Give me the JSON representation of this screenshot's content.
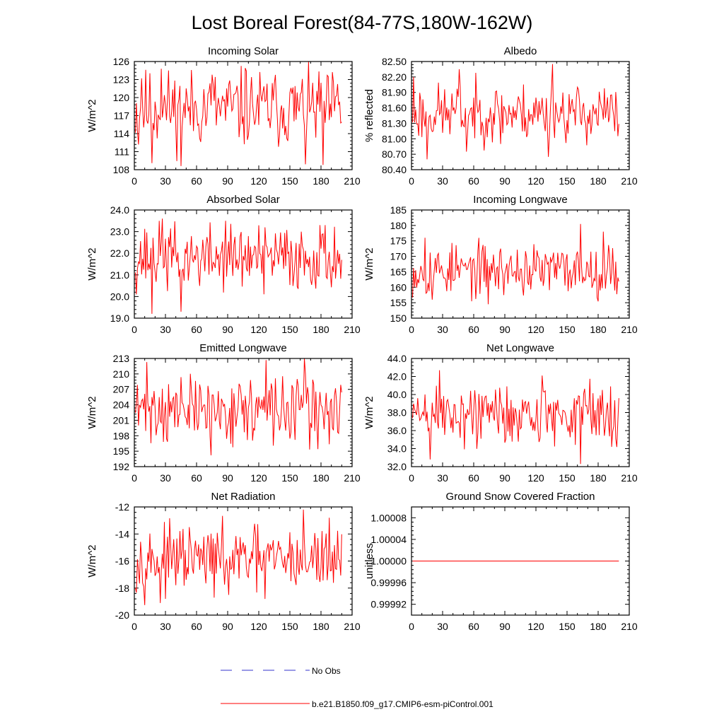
{
  "title": "Lost Boreal Forest(84-77S,180W-162W)",
  "colors": {
    "series": "#ff0000",
    "obs": "#3333cc",
    "axis": "#000000"
  },
  "legend": [
    {
      "label": "No Obs",
      "style": "dashed",
      "color": "#3333cc"
    },
    {
      "label": "b.e21.B1850.f09_g17.CMIP6-esm-piControl.001",
      "style": "solid",
      "color": "#ff0000"
    }
  ],
  "chart_data": [
    {
      "type": "line",
      "title": "Incoming Solar",
      "ylabel": "W/m^2",
      "xlim": [
        0,
        210
      ],
      "xticks": [
        "0",
        "30",
        "60",
        "90",
        "120",
        "150",
        "180",
        "210"
      ],
      "ylim": [
        108,
        126
      ],
      "yticks": [
        "108",
        "111",
        "114",
        "117",
        "120",
        "123",
        "126"
      ],
      "n": 200,
      "mean": 118.2,
      "amp": 3.2,
      "seed": 11,
      "extremes": [
        [
          3,
          112.2
        ],
        [
          6,
          123.2
        ],
        [
          16,
          109.1
        ],
        [
          25,
          124.8
        ],
        [
          44,
          108.6
        ],
        [
          74,
          123.8
        ],
        [
          106,
          124.9
        ],
        [
          164,
          108.9
        ],
        [
          181,
          108.8
        ],
        [
          186,
          123.5
        ]
      ]
    },
    {
      "type": "line",
      "title": "Albedo",
      "ylabel": "% reflected",
      "xlim": [
        0,
        210
      ],
      "xticks": [
        "0",
        "30",
        "60",
        "90",
        "120",
        "150",
        "180",
        "210"
      ],
      "ylim": [
        80.4,
        82.5
      ],
      "yticks": [
        "80.40",
        "80.70",
        "81.00",
        "81.30",
        "81.60",
        "81.90",
        "82.20",
        "82.50"
      ],
      "n": 200,
      "mean": 81.5,
      "amp": 0.28,
      "seed": 23,
      "extremes": [
        [
          1,
          82.2
        ],
        [
          14,
          80.6
        ],
        [
          45,
          82.35
        ],
        [
          52,
          80.75
        ],
        [
          85,
          80.9
        ],
        [
          131,
          80.65
        ],
        [
          135,
          82.45
        ],
        [
          198,
          81.05
        ]
      ]
    },
    {
      "type": "line",
      "title": "Absorbed Solar",
      "ylabel": "W/m^2",
      "xlim": [
        0,
        210
      ],
      "xticks": [
        "0",
        "30",
        "60",
        "90",
        "120",
        "150",
        "180",
        "210"
      ],
      "ylim": [
        19.0,
        24.0
      ],
      "yticks": [
        "19.0",
        "20.0",
        "21.0",
        "22.0",
        "23.0",
        "24.0"
      ],
      "n": 200,
      "mean": 21.8,
      "amp": 0.75,
      "seed": 37,
      "extremes": [
        [
          16,
          19.2
        ],
        [
          26,
          23.6
        ],
        [
          44,
          19.3
        ],
        [
          87,
          23.5
        ],
        [
          124,
          20.1
        ],
        [
          178,
          23.3
        ]
      ]
    },
    {
      "type": "line",
      "title": "Incoming Longwave",
      "ylabel": "W/m^2",
      "xlim": [
        0,
        210
      ],
      "xticks": [
        "0",
        "30",
        "60",
        "90",
        "120",
        "150",
        "180",
        "210"
      ],
      "ylim": [
        150,
        185
      ],
      "yticks": [
        "150",
        "155",
        "160",
        "165",
        "170",
        "175",
        "180",
        "185"
      ],
      "n": 200,
      "mean": 165.5,
      "amp": 4.2,
      "seed": 53,
      "extremes": [
        [
          12,
          176.0
        ],
        [
          19,
          156.0
        ],
        [
          73,
          154.5
        ],
        [
          162,
          180.5
        ],
        [
          184,
          178.0
        ]
      ]
    },
    {
      "type": "line",
      "title": "Emitted Longwave",
      "ylabel": "W/m^2",
      "xlim": [
        0,
        210
      ],
      "xticks": [
        "0",
        "30",
        "60",
        "90",
        "120",
        "150",
        "180",
        "210"
      ],
      "ylim": [
        192,
        213
      ],
      "yticks": [
        "192",
        "195",
        "198",
        "201",
        "204",
        "207",
        "210",
        "213"
      ],
      "n": 200,
      "mean": 203.0,
      "amp": 3.2,
      "seed": 71,
      "extremes": [
        [
          11,
          212.3
        ],
        [
          73,
          194.2
        ],
        [
          126,
          212.7
        ],
        [
          163,
          213.0
        ],
        [
          176,
          195.4
        ],
        [
          200,
          202.0
        ]
      ]
    },
    {
      "type": "line",
      "title": "Net Longwave",
      "ylabel": "W/m^2",
      "xlim": [
        0,
        210
      ],
      "xticks": [
        "0",
        "30",
        "60",
        "90",
        "120",
        "150",
        "180",
        "210"
      ],
      "ylim": [
        32.0,
        44.0
      ],
      "yticks": [
        "32.0",
        "34.0",
        "36.0",
        "38.0",
        "40.0",
        "42.0",
        "44.0"
      ],
      "n": 200,
      "mean": 37.8,
      "amp": 1.8,
      "seed": 89,
      "extremes": [
        [
          17,
          32.8
        ],
        [
          26,
          42.7
        ],
        [
          125,
          42.1
        ],
        [
          162,
          32.3
        ],
        [
          191,
          40.9
        ]
      ]
    },
    {
      "type": "line",
      "title": "Net Radiation",
      "ylabel": "W/m^2",
      "xlim": [
        0,
        210
      ],
      "xticks": [
        "0",
        "30",
        "60",
        "90",
        "120",
        "150",
        "180",
        "210"
      ],
      "ylim": [
        -20,
        -12
      ],
      "yticks": [
        "-20",
        "-18",
        "-16",
        "-14",
        "-12"
      ],
      "n": 200,
      "mean": -15.9,
      "amp": 1.15,
      "seed": 97,
      "extremes": [
        [
          24,
          -19.1
        ],
        [
          90,
          -18.5
        ],
        [
          125,
          -18.8
        ],
        [
          162,
          -12.2
        ],
        [
          187,
          -12.8
        ]
      ]
    },
    {
      "type": "line",
      "title": "Ground Snow Covered Fraction",
      "ylabel": "unitless",
      "xlim": [
        0,
        210
      ],
      "xticks": [
        "0",
        "30",
        "60",
        "90",
        "120",
        "150",
        "180",
        "210"
      ],
      "ylim": [
        0.9999,
        1.0001
      ],
      "yticks": [
        "0.99992",
        "0.99996",
        "1.00000",
        "1.00004",
        "1.00008"
      ],
      "ytickvalues": [
        0.99992,
        0.99996,
        1.0,
        1.00004,
        1.00008
      ],
      "n": 200,
      "mean": 1.0,
      "amp": 0,
      "seed": 1,
      "extremes": []
    }
  ]
}
